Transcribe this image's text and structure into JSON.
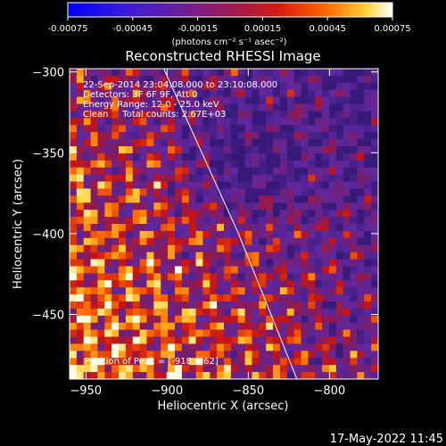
{
  "colorbar": {
    "ticks": [
      "-0.00075",
      "-0.00045",
      "-0.00015",
      "0.00015",
      "0.00045",
      "0.00075"
    ],
    "tick_values": [
      -0.00075,
      -0.00045,
      -0.00015,
      0.00015,
      0.00045,
      0.00075
    ],
    "unit_label": "(photons cm⁻² s⁻¹ asec⁻²)"
  },
  "footer": {
    "timestamp": "17-May-2022 11:45"
  },
  "chart_data": {
    "type": "heatmap",
    "title": "Reconstructed RHESSI Image",
    "xlabel": "Heliocentric X (arcsec)",
    "ylabel": "Heliocentric Y (arcsec)",
    "xlim": [
      -960,
      -770
    ],
    "ylim": [
      -490,
      -298
    ],
    "x_ticks": [
      -950,
      -900,
      -850,
      -800
    ],
    "y_ticks": [
      -300,
      -350,
      -400,
      -450
    ],
    "x_tick_labels": [
      "−950",
      "−900",
      "−850",
      "−800"
    ],
    "y_tick_labels": [
      "−300",
      "−350",
      "−400",
      "−450"
    ],
    "value_range": [
      -0.00075,
      0.00075
    ],
    "limb_line": [
      [
        -902,
        -298
      ],
      [
        -856,
        -400
      ],
      [
        -820,
        -490
      ]
    ],
    "annotations": {
      "time": "22-Sep-2014 23:04:08.000 to 23:10:08.000",
      "detectors": "Detectors: 3F 6F 9F, Att 0",
      "energy": "Energy Range: 12.0 - 25.0 keV",
      "method": "Clean     Total counts: 2.67E+03",
      "peak": "Position of Peak = [-918,-462]"
    }
  }
}
